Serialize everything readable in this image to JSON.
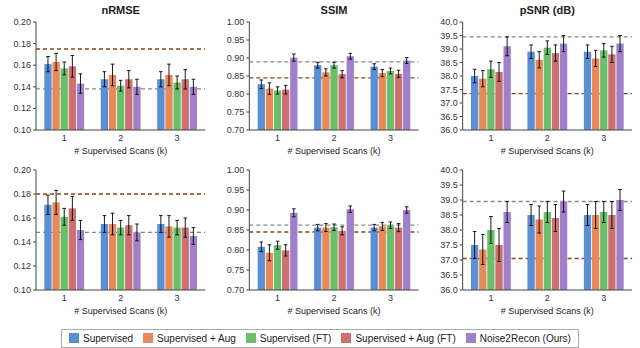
{
  "chart_data": [
    {
      "type": "bar",
      "title": "nRMSE",
      "xlabel": "# Supervised Scans (k)",
      "categories": [
        "1",
        "2",
        "3"
      ],
      "series": [
        {
          "name": "Supervised",
          "color": "#5B8FD4",
          "values": [
            0.161,
            0.147,
            0.147
          ],
          "errors": [
            0.007,
            0.007,
            0.007
          ]
        },
        {
          "name": "Supervised + Aug",
          "color": "#E8895A",
          "values": [
            0.163,
            0.151,
            0.151
          ],
          "errors": [
            0.008,
            0.01,
            0.01
          ]
        },
        {
          "name": "Supervised (FT)",
          "color": "#6BBF6B",
          "values": [
            0.157,
            0.141,
            0.144
          ],
          "errors": [
            0.006,
            0.005,
            0.006
          ]
        },
        {
          "name": "Supervised + Aug (FT)",
          "color": "#CD7070",
          "values": [
            0.159,
            0.147,
            0.147
          ],
          "errors": [
            0.01,
            0.008,
            0.009
          ]
        },
        {
          "name": "Noise2Recon (Ours)",
          "color": "#A080C8",
          "values": [
            0.143,
            0.14,
            0.14
          ],
          "errors": [
            0.009,
            0.007,
            0.007
          ]
        }
      ],
      "reference_lines": [
        {
          "value": 0.138,
          "color": "#888888",
          "line_style": "dashed"
        },
        {
          "value": 0.175,
          "color": "#8B4513",
          "line_style": "dashed"
        }
      ],
      "ylim": [
        0.1,
        0.2
      ],
      "yticks": [
        {
          "value": 0.1,
          "label": "0.10"
        },
        0.12,
        0.14,
        0.16,
        0.18,
        {
          "value": 0.2,
          "label": "0.20"
        }
      ]
    },
    {
      "type": "bar",
      "title": "SSIM",
      "xlabel": "# Supervised Scans (k)",
      "categories": [
        "1",
        "2",
        "3"
      ],
      "series": [
        {
          "name": "Supervised",
          "color": "#5B8FD4",
          "values": [
            0.827,
            0.88,
            0.876
          ],
          "errors": [
            0.012,
            0.008,
            0.008
          ]
        },
        {
          "name": "Supervised + Aug",
          "color": "#E8895A",
          "values": [
            0.815,
            0.86,
            0.858
          ],
          "errors": [
            0.016,
            0.01,
            0.01
          ]
        },
        {
          "name": "Supervised (FT)",
          "color": "#6BBF6B",
          "values": [
            0.81,
            0.88,
            0.864
          ],
          "errors": [
            0.01,
            0.008,
            0.008
          ]
        },
        {
          "name": "Supervised + Aug (FT)",
          "color": "#CD7070",
          "values": [
            0.812,
            0.855,
            0.856
          ],
          "errors": [
            0.012,
            0.01,
            0.01
          ]
        },
        {
          "name": "Noise2Recon (Ours)",
          "color": "#A080C8",
          "values": [
            0.901,
            0.905,
            0.893
          ],
          "errors": [
            0.01,
            0.008,
            0.008
          ]
        }
      ],
      "reference_lines": [
        {
          "value": 0.889,
          "color": "#888888",
          "line_style": "dashed"
        },
        {
          "value": 0.845,
          "color": "#8B4513",
          "line_style": "dashed"
        }
      ],
      "ylim": [
        0.7,
        1.0
      ],
      "yticks": [
        {
          "value": 0.7,
          "label": "0.70"
        },
        0.75,
        {
          "value": 0.8,
          "label": "0.80"
        },
        0.85,
        {
          "value": 0.9,
          "label": "0.90"
        },
        0.95,
        {
          "value": 1.0,
          "label": "1.00"
        }
      ]
    },
    {
      "type": "bar",
      "title": "pSNR (dB)",
      "xlabel": "# Supervised Scans (k)",
      "categories": [
        "1",
        "2",
        "3"
      ],
      "series": [
        {
          "name": "Supervised",
          "color": "#5B8FD4",
          "values": [
            38.0,
            38.9,
            38.9
          ],
          "errors": [
            0.25,
            0.25,
            0.25
          ]
        },
        {
          "name": "Supervised + Aug",
          "color": "#E8895A",
          "values": [
            37.9,
            38.6,
            38.65
          ],
          "errors": [
            0.3,
            0.3,
            0.3
          ]
        },
        {
          "name": "Supervised (FT)",
          "color": "#6BBF6B",
          "values": [
            38.25,
            39.05,
            38.95
          ],
          "errors": [
            0.3,
            0.25,
            0.25
          ]
        },
        {
          "name": "Supervised + Aug (FT)",
          "color": "#CD7070",
          "values": [
            38.15,
            38.85,
            38.8
          ],
          "errors": [
            0.35,
            0.3,
            0.3
          ]
        },
        {
          "name": "Noise2Recon (Ours)",
          "color": "#A080C8",
          "values": [
            39.1,
            39.2,
            39.2
          ],
          "errors": [
            0.35,
            0.3,
            0.3
          ]
        }
      ],
      "reference_lines": [
        {
          "value": 39.45,
          "color": "#888888",
          "line_style": "dashed"
        },
        {
          "value": 37.35,
          "color": "#8B4513",
          "line_style": "dashed"
        }
      ],
      "ylim": [
        36.0,
        40.0
      ],
      "yticks": [
        {
          "value": 36.0,
          "label": "36.0"
        },
        36.5,
        {
          "value": 37.0,
          "label": "37.0"
        },
        37.5,
        {
          "value": 38.0,
          "label": "38.0"
        },
        38.5,
        {
          "value": 39.0,
          "label": "39.0"
        },
        39.5,
        {
          "value": 40.0,
          "label": "40.0"
        }
      ]
    },
    {
      "type": "bar",
      "xlabel": "# Supervised Scans (k)",
      "categories": [
        "1",
        "2",
        "3"
      ],
      "series": [
        {
          "name": "Supervised",
          "color": "#5B8FD4",
          "values": [
            0.171,
            0.155,
            0.155
          ],
          "errors": [
            0.008,
            0.007,
            0.007
          ]
        },
        {
          "name": "Supervised + Aug",
          "color": "#E8895A",
          "values": [
            0.173,
            0.155,
            0.153
          ],
          "errors": [
            0.01,
            0.009,
            0.009
          ]
        },
        {
          "name": "Supervised (FT)",
          "color": "#6BBF6B",
          "values": [
            0.161,
            0.152,
            0.152
          ],
          "errors": [
            0.007,
            0.006,
            0.006
          ]
        },
        {
          "name": "Supervised + Aug (FT)",
          "color": "#CD7070",
          "values": [
            0.168,
            0.154,
            0.152
          ],
          "errors": [
            0.01,
            0.008,
            0.008
          ]
        },
        {
          "name": "Noise2Recon (Ours)",
          "color": "#A080C8",
          "values": [
            0.15,
            0.148,
            0.145
          ],
          "errors": [
            0.008,
            0.007,
            0.007
          ]
        }
      ],
      "reference_lines": [
        {
          "value": 0.148,
          "color": "#888888",
          "line_style": "dashed"
        },
        {
          "value": 0.18,
          "color": "#8B4513",
          "line_style": "dashed"
        }
      ],
      "ylim": [
        0.1,
        0.2
      ],
      "yticks": [
        {
          "value": 0.1,
          "label": "0.10"
        },
        0.12,
        0.14,
        0.16,
        0.18,
        {
          "value": 0.2,
          "label": "0.20"
        }
      ]
    },
    {
      "type": "bar",
      "xlabel": "# Supervised Scans (k)",
      "categories": [
        "1",
        "2",
        "3"
      ],
      "series": [
        {
          "name": "Supervised",
          "color": "#5B8FD4",
          "values": [
            0.808,
            0.856,
            0.856
          ],
          "errors": [
            0.012,
            0.008,
            0.008
          ]
        },
        {
          "name": "Supervised + Aug",
          "color": "#E8895A",
          "values": [
            0.793,
            0.856,
            0.859
          ],
          "errors": [
            0.02,
            0.01,
            0.01
          ]
        },
        {
          "name": "Supervised (FT)",
          "color": "#6BBF6B",
          "values": [
            0.812,
            0.857,
            0.862
          ],
          "errors": [
            0.01,
            0.008,
            0.008
          ]
        },
        {
          "name": "Supervised + Aug (FT)",
          "color": "#CD7070",
          "values": [
            0.799,
            0.848,
            0.856
          ],
          "errors": [
            0.014,
            0.01,
            0.01
          ]
        },
        {
          "name": "Noise2Recon (Ours)",
          "color": "#A080C8",
          "values": [
            0.893,
            0.902,
            0.9
          ],
          "errors": [
            0.01,
            0.008,
            0.008
          ]
        }
      ],
      "reference_lines": [
        {
          "value": 0.862,
          "color": "#888888",
          "line_style": "dashed"
        },
        {
          "value": 0.845,
          "color": "#8B4513",
          "line_style": "dashed"
        }
      ],
      "ylim": [
        0.7,
        1.0
      ],
      "yticks": [
        {
          "value": 0.7,
          "label": "0.70"
        },
        0.75,
        {
          "value": 0.8,
          "label": "0.80"
        },
        0.85,
        {
          "value": 0.9,
          "label": "0.90"
        },
        0.95,
        {
          "value": 1.0,
          "label": "1.00"
        }
      ]
    },
    {
      "type": "bar",
      "xlabel": "# Supervised Scans (k)",
      "categories": [
        "1",
        "2",
        "3"
      ],
      "series": [
        {
          "name": "Supervised",
          "color": "#5B8FD4",
          "values": [
            37.5,
            38.5,
            38.5
          ],
          "errors": [
            0.45,
            0.35,
            0.35
          ]
        },
        {
          "name": "Supervised + Aug",
          "color": "#E8895A",
          "values": [
            37.35,
            38.35,
            38.5
          ],
          "errors": [
            0.5,
            0.45,
            0.45
          ]
        },
        {
          "name": "Supervised (FT)",
          "color": "#6BBF6B",
          "values": [
            38.0,
            38.6,
            38.6
          ],
          "errors": [
            0.45,
            0.35,
            0.35
          ]
        },
        {
          "name": "Supervised + Aug (FT)",
          "color": "#CD7070",
          "values": [
            37.5,
            38.4,
            38.5
          ],
          "errors": [
            0.55,
            0.45,
            0.45
          ]
        },
        {
          "name": "Noise2Recon (Ours)",
          "color": "#A080C8",
          "values": [
            38.6,
            38.95,
            39.0
          ],
          "errors": [
            0.35,
            0.35,
            0.35
          ]
        }
      ],
      "reference_lines": [
        {
          "value": 38.95,
          "color": "#888888",
          "line_style": "dashed"
        },
        {
          "value": 37.05,
          "color": "#8B4513",
          "line_style": "dashed"
        }
      ],
      "ylim": [
        36.0,
        40.0
      ],
      "yticks": [
        {
          "value": 36.0,
          "label": "36.0"
        },
        36.5,
        {
          "value": 37.0,
          "label": "37.0"
        },
        37.5,
        {
          "value": 38.0,
          "label": "38.0"
        },
        38.5,
        {
          "value": 39.0,
          "label": "39.0"
        },
        39.5,
        {
          "value": 40.0,
          "label": "40.0"
        }
      ]
    }
  ]
}
